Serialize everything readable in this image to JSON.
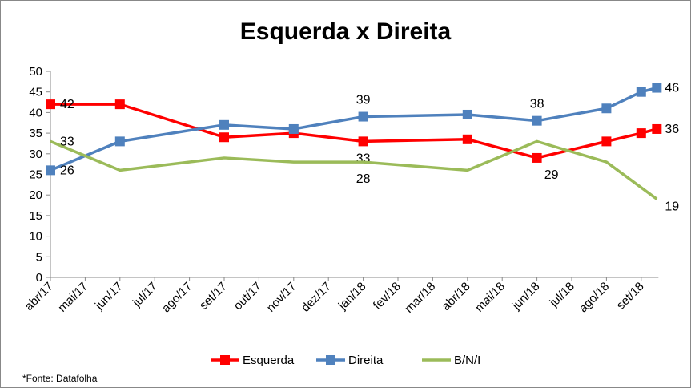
{
  "chart_data": {
    "type": "line",
    "title": "Esquerda x Direita",
    "source": "*Fonte: Datafolha",
    "categories": [
      "abr/17",
      "mai/17",
      "jun/17",
      "jul/17",
      "ago/17",
      "set/17",
      "out/17",
      "nov/17",
      "dez/17",
      "jan/18",
      "fev/18",
      "mar/18",
      "abr/18",
      "mai/18",
      "jun/18",
      "jul/18",
      "ago/18",
      "set/18"
    ],
    "x": [
      0,
      2,
      5,
      7,
      9,
      12,
      14,
      16,
      17,
      17.45
    ],
    "ylim": [
      0,
      50
    ],
    "yticks": [
      0,
      5,
      10,
      15,
      20,
      25,
      30,
      35,
      40,
      45,
      50
    ],
    "legend_position": "bottom",
    "series": [
      {
        "name": "Esquerda",
        "color": "#FF0000",
        "marker": true,
        "values": [
          42,
          42,
          34,
          35,
          33,
          33.5,
          29,
          33,
          35,
          36
        ],
        "labels": [
          {
            "i": 0,
            "text": "42"
          },
          {
            "i": 4,
            "text": "33"
          },
          {
            "i": 6,
            "text": "29"
          },
          {
            "i": 9,
            "text": "36"
          }
        ]
      },
      {
        "name": "Direita",
        "color": "#4F81BD",
        "marker": true,
        "values": [
          26,
          33,
          37,
          36,
          39,
          39.5,
          38,
          41,
          45,
          46
        ],
        "labels": [
          {
            "i": 0,
            "text": "26"
          },
          {
            "i": 4,
            "text": "39"
          },
          {
            "i": 6,
            "text": "38"
          },
          {
            "i": 9,
            "text": "46"
          }
        ]
      },
      {
        "name": "B/N/I",
        "color": "#9BBB59",
        "marker": false,
        "values": [
          33,
          26,
          29,
          28,
          28,
          26,
          33,
          28,
          null,
          19
        ],
        "labels": [
          {
            "i": 0,
            "text": "33"
          },
          {
            "i": 4,
            "text": "28"
          },
          {
            "i": 9,
            "text": "19"
          }
        ]
      }
    ]
  }
}
